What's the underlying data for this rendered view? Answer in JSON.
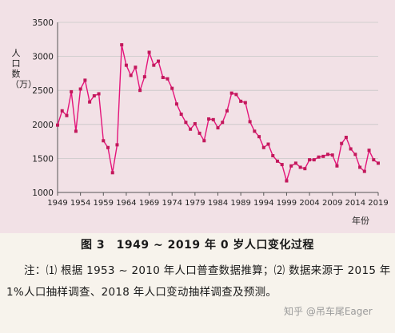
{
  "caption": "图 3　1949 ~ 2019 年 0 岁人口变化过程",
  "note": "注：⑴ 根据 1953 ~ 2010 年人口普查数据推算；⑵ 数据来源于 2015 年 1%人口抽样调查、2018 年人口变动抽样调查及预测。",
  "watermark": "知乎 @吊车尾Eager",
  "chart_data": {
    "type": "line",
    "ylabel": "人口数（万）",
    "xlabel": "年份",
    "ylim": [
      1000,
      3500
    ],
    "xlim": [
      1949,
      2019
    ],
    "yticks": [
      "1000",
      "1500",
      "2000",
      "2500",
      "3000",
      "3500"
    ],
    "xticks": [
      "1949",
      "1954",
      "1959",
      "1964",
      "1969",
      "1974",
      "1979",
      "1984",
      "1989",
      "1994",
      "1999",
      "2004",
      "2009",
      "2014",
      "2019"
    ],
    "grid": "horizontal",
    "colors": {
      "line": "#e4147a",
      "marker": "#c2185b",
      "grid": "#c7c7c7",
      "axis": "#555555"
    },
    "series": [
      {
        "x": [
          1949,
          1950,
          1951,
          1952,
          1953,
          1954,
          1955,
          1956,
          1957,
          1958,
          1959,
          1960,
          1961,
          1962,
          1963,
          1964,
          1965,
          1966,
          1967,
          1968,
          1969,
          1970,
          1971,
          1972,
          1973,
          1974,
          1975,
          1976,
          1977,
          1978,
          1979,
          1980,
          1981,
          1982,
          1983,
          1984,
          1985,
          1986,
          1987,
          1988,
          1989,
          1990,
          1991,
          1992,
          1993,
          1994,
          1995,
          1996,
          1997,
          1998,
          1999,
          2000,
          2001,
          2002,
          2003,
          2004,
          2005,
          2006,
          2007,
          2008,
          2009,
          2010,
          2011,
          2012,
          2013,
          2014,
          2015,
          2016,
          2017,
          2018,
          2019
        ],
        "values": [
          1990,
          2200,
          2130,
          2480,
          1900,
          2520,
          2650,
          2330,
          2420,
          2450,
          1760,
          1660,
          1290,
          1700,
          3170,
          2870,
          2720,
          2840,
          2500,
          2700,
          3060,
          2870,
          2930,
          2690,
          2670,
          2530,
          2300,
          2150,
          2030,
          1930,
          2010,
          1870,
          1760,
          2080,
          2070,
          1950,
          2030,
          2200,
          2460,
          2440,
          2340,
          2320,
          2040,
          1900,
          1820,
          1660,
          1710,
          1540,
          1460,
          1410,
          1170,
          1390,
          1430,
          1370,
          1350,
          1480,
          1480,
          1520,
          1530,
          1560,
          1550,
          1390,
          1720,
          1810,
          1640,
          1560,
          1370,
          1310,
          1620,
          1480,
          1430
        ]
      }
    ]
  }
}
